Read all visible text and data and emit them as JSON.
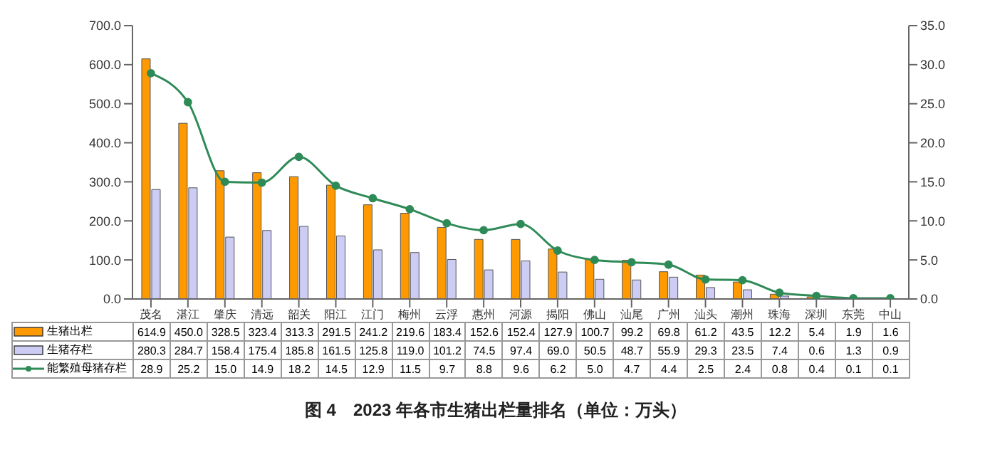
{
  "chart_data": {
    "type": "bar",
    "title": "图 4　2023 年各市生猪出栏量排名（单位：万头）",
    "categories": [
      "茂名",
      "湛江",
      "肇庆",
      "清远",
      "韶关",
      "阳江",
      "江门",
      "梅州",
      "云浮",
      "惠州",
      "河源",
      "揭阳",
      "佛山",
      "汕尾",
      "广州",
      "汕头",
      "潮州",
      "珠海",
      "深圳",
      "东莞",
      "中山"
    ],
    "series": [
      {
        "name": "生猪出栏",
        "color": "#ff9900",
        "values": [
          614.9,
          450.0,
          328.5,
          323.4,
          313.3,
          291.5,
          241.2,
          219.6,
          183.4,
          152.6,
          152.4,
          127.9,
          100.7,
          99.2,
          69.8,
          61.2,
          43.5,
          12.2,
          5.4,
          1.9,
          1.6
        ],
        "value_labels": [
          "614.9",
          "450.0",
          "328.5",
          "323.4",
          "313.3",
          "291.5",
          "241.2",
          "219.6",
          "183.4",
          "152.6",
          "152.4",
          "127.9",
          "100.7",
          "99.2",
          "69.8",
          "61.2",
          "43.5",
          "12.2",
          "5.4",
          "1.9",
          "1.6"
        ]
      },
      {
        "name": "生猪存栏",
        "color": "#ccccf5",
        "values": [
          280.3,
          284.7,
          158.4,
          175.4,
          185.8,
          161.5,
          125.8,
          119.0,
          101.2,
          74.5,
          97.4,
          69.0,
          50.5,
          48.7,
          55.9,
          29.3,
          23.5,
          7.4,
          0.6,
          1.3,
          0.9
        ],
        "value_labels": [
          "280.3",
          "284.7",
          "158.4",
          "175.4",
          "185.8",
          "161.5",
          "125.8",
          "119.0",
          "101.2",
          "74.5",
          "97.4",
          "69.0",
          "50.5",
          "48.7",
          "55.9",
          "29.3",
          "23.5",
          "7.4",
          "0.6",
          "1.3",
          "0.9"
        ]
      },
      {
        "name": "能繁殖母猪存栏",
        "type": "line",
        "axis": "y2",
        "color": "#2e8b57",
        "values": [
          28.9,
          25.2,
          15.0,
          14.9,
          18.2,
          14.5,
          12.9,
          11.5,
          9.7,
          8.8,
          9.6,
          6.2,
          5.0,
          4.7,
          4.4,
          2.5,
          2.4,
          0.8,
          0.4,
          0.1,
          0.1
        ],
        "value_labels": [
          "28.9",
          "25.2",
          "15.0",
          "14.9",
          "18.2",
          "14.5",
          "12.9",
          "11.5",
          "9.7",
          "8.8",
          "9.6",
          "6.2",
          "5.0",
          "4.7",
          "4.4",
          "2.5",
          "2.4",
          "0.8",
          "0.4",
          "0.1",
          "0.1"
        ]
      }
    ],
    "ylim": [
      0,
      700
    ],
    "yticks": [
      {
        "value": 0,
        "label": "0.0"
      },
      {
        "value": 100,
        "label": "100.0"
      },
      {
        "value": 200,
        "label": "200.0"
      },
      {
        "value": 300,
        "label": "300.0"
      },
      {
        "value": 400,
        "label": "400.0"
      },
      {
        "value": 500,
        "label": "500.0"
      },
      {
        "value": 600,
        "label": "600.0"
      },
      {
        "value": 700,
        "label": "700.0"
      }
    ],
    "y2lim": [
      0,
      35
    ],
    "y2ticks": [
      {
        "value": 0,
        "label": "0.0"
      },
      {
        "value": 5,
        "label": "5.0"
      },
      {
        "value": 10,
        "label": "10.0"
      },
      {
        "value": 15,
        "label": "15.0"
      },
      {
        "value": 20,
        "label": "20.0"
      },
      {
        "value": 25,
        "label": "25.0"
      },
      {
        "value": 30,
        "label": "30.0"
      },
      {
        "value": 35,
        "label": "35.0"
      }
    ],
    "legend": "bottom",
    "marker": "circle",
    "line_style": "solid"
  }
}
